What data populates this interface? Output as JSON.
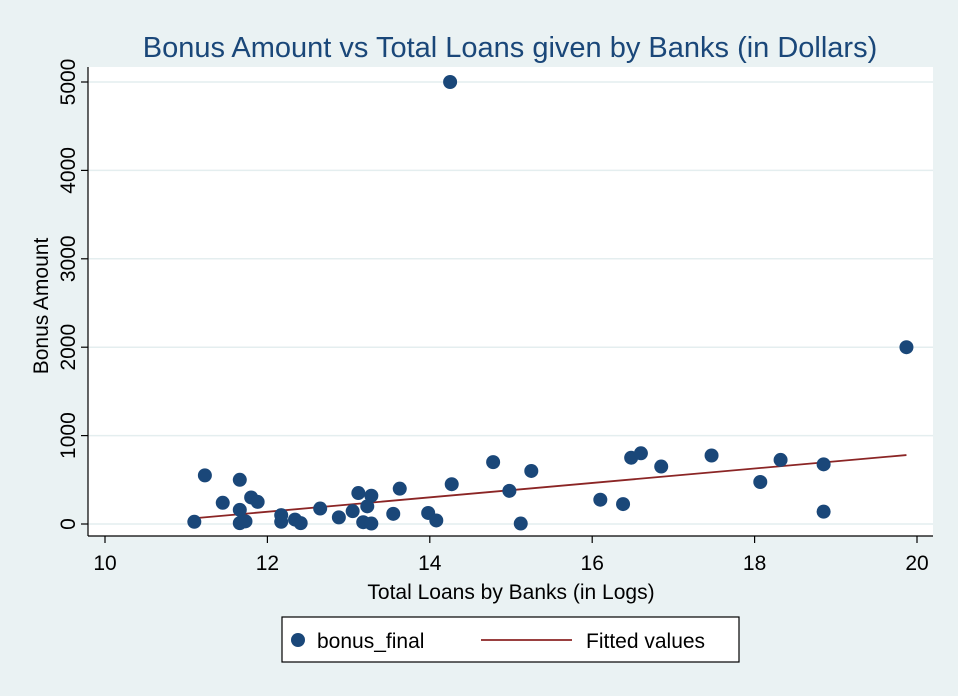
{
  "chart_data": {
    "type": "scatter",
    "title": "Bonus Amount vs Total Loans given by Banks (in Dollars)",
    "xlabel": "Total Loans by Banks (in Logs)",
    "ylabel": "Bonus Amount",
    "xlim": [
      10,
      20
    ],
    "ylim": [
      0,
      5000
    ],
    "xticks": [
      "10",
      "12",
      "14",
      "16",
      "18",
      "20"
    ],
    "yticks": [
      "0",
      "1000",
      "2000",
      "3000",
      "4000",
      "5000"
    ],
    "xtick_values": [
      10,
      12,
      14,
      16,
      18,
      20
    ],
    "ytick_values": [
      0,
      1000,
      2000,
      3000,
      4000,
      5000
    ],
    "grid": true,
    "legend_position": "bottom",
    "series": [
      {
        "name": "bonus_final",
        "kind": "scatter",
        "color": "#1a4779",
        "points": [
          [
            11.1,
            25
          ],
          [
            11.23,
            550
          ],
          [
            11.45,
            240
          ],
          [
            11.66,
            500
          ],
          [
            11.66,
            160
          ],
          [
            11.66,
            10
          ],
          [
            11.73,
            30
          ],
          [
            11.8,
            300
          ],
          [
            11.88,
            250
          ],
          [
            12.17,
            100
          ],
          [
            12.17,
            25
          ],
          [
            12.34,
            50
          ],
          [
            12.41,
            10
          ],
          [
            12.65,
            175
          ],
          [
            12.88,
            75
          ],
          [
            13.05,
            145
          ],
          [
            13.12,
            350
          ],
          [
            13.18,
            20
          ],
          [
            13.23,
            200
          ],
          [
            13.28,
            320
          ],
          [
            13.28,
            5
          ],
          [
            13.55,
            115
          ],
          [
            13.63,
            400
          ],
          [
            13.98,
            125
          ],
          [
            14.08,
            40
          ],
          [
            14.25,
            5000
          ],
          [
            14.27,
            450
          ],
          [
            14.78,
            700
          ],
          [
            14.98,
            375
          ],
          [
            15.12,
            5
          ],
          [
            15.25,
            600
          ],
          [
            16.1,
            275
          ],
          [
            16.38,
            225
          ],
          [
            16.48,
            750
          ],
          [
            16.6,
            800
          ],
          [
            16.85,
            650
          ],
          [
            17.47,
            775
          ],
          [
            18.07,
            475
          ],
          [
            18.32,
            725
          ],
          [
            18.85,
            675
          ],
          [
            18.85,
            140
          ],
          [
            19.87,
            2000
          ]
        ]
      },
      {
        "name": "Fitted values",
        "kind": "line",
        "color": "#8b2525",
        "points": [
          [
            11.1,
            65
          ],
          [
            19.87,
            780
          ]
        ]
      }
    ]
  }
}
